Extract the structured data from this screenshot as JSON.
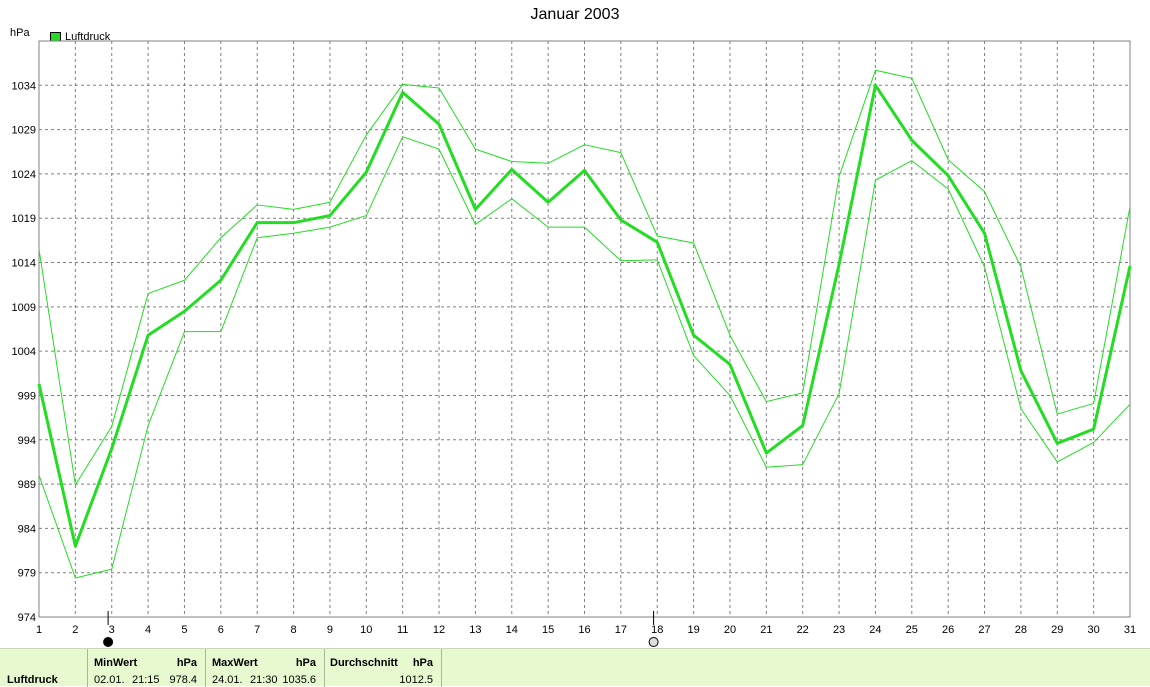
{
  "chart_data": {
    "type": "line",
    "title": "Januar 2003",
    "ylabel": "hPa",
    "x": [
      1,
      2,
      3,
      4,
      5,
      6,
      7,
      8,
      9,
      10,
      11,
      12,
      13,
      14,
      15,
      16,
      17,
      18,
      19,
      20,
      21,
      22,
      23,
      24,
      25,
      26,
      27,
      28,
      29,
      30,
      31
    ],
    "ylim": [
      974,
      1039
    ],
    "y_ticks": [
      974,
      979,
      984,
      989,
      994,
      999,
      1004,
      1009,
      1014,
      1019,
      1024,
      1029,
      1034
    ],
    "grid": true,
    "legend": "top-left",
    "series": [
      {
        "name": "Luftdruck",
        "values": [
          1000.3,
          982.0,
          993.0,
          1005.8,
          1008.5,
          1012.0,
          1018.5,
          1018.5,
          1019.3,
          1024.2,
          1033.2,
          1029.6,
          1020.0,
          1024.5,
          1020.8,
          1024.4,
          1018.8,
          1016.3,
          1005.8,
          1002.5,
          992.5,
          995.6,
          1013.8,
          1034.0,
          1027.8,
          1023.8,
          1017.3,
          1001.8,
          993.6,
          995.2,
          1013.6
        ]
      },
      {
        "values": [
          1015.5,
          988.9,
          995.5,
          1010.5,
          1012.0,
          1016.8,
          1020.5,
          1020.0,
          1020.8,
          1028.4,
          1034.1,
          1033.7,
          1026.8,
          1025.4,
          1025.2,
          1027.3,
          1026.4,
          1017.0,
          1016.2,
          1005.8,
          998.3,
          999.3,
          1023.7,
          1035.7,
          1034.8,
          1025.6,
          1022.0,
          1013.5,
          996.9,
          998.1,
          1020.3
        ]
      },
      {
        "values": [
          990.0,
          978.4,
          979.4,
          995.6,
          1006.2,
          1006.2,
          1016.8,
          1017.3,
          1018.0,
          1019.3,
          1028.2,
          1026.8,
          1018.3,
          1021.2,
          1018.0,
          1018.0,
          1014.2,
          1014.3,
          1003.5,
          999.0,
          990.9,
          991.2,
          999.2,
          1023.3,
          1025.5,
          1022.3,
          1013.5,
          997.5,
          991.5,
          993.7,
          998.0
        ]
      }
    ],
    "colors": {
      "main": "#22dd22",
      "band": "#22dd22",
      "grid": "#808080"
    },
    "moon_phases": [
      {
        "day": 3,
        "icon": "full-moon-icon"
      },
      {
        "day": 18,
        "icon": "new-moon-icon"
      }
    ]
  },
  "footer": {
    "series_label": "Luftdruck",
    "min": {
      "header": "MinWert",
      "unit": "hPa",
      "date": "02.01.",
      "time": "21:15",
      "value": "978.4"
    },
    "max": {
      "header": "MaxWert",
      "unit": "hPa",
      "date": "24.01.",
      "time": "21:30",
      "value": "1035.6"
    },
    "avg": {
      "header": "Durchschnitt",
      "unit": "hPa",
      "value": "1012.5"
    }
  }
}
